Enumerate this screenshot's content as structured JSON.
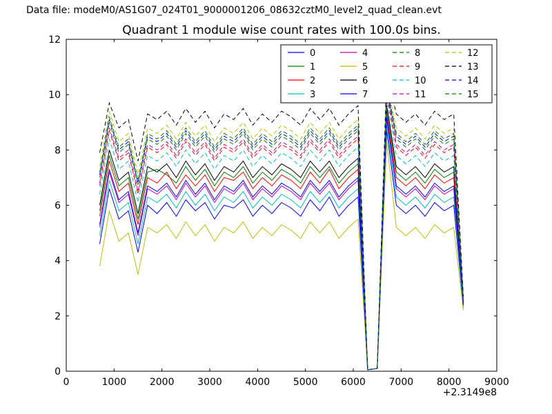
{
  "header": {
    "text": "Data file: modeM0/AS1G07_024T01_9000001206_08632cztM0_level2_quad_clean.evt"
  },
  "chart_data": {
    "type": "line",
    "title": "Quadrant 1 module wise count rates with 100.0s bins.",
    "xlabel": "",
    "ylabel": "",
    "x_axis": {
      "lim": [
        0,
        9000
      ],
      "ticks": [
        0,
        1000,
        2000,
        3000,
        4000,
        5000,
        6000,
        7000,
        8000,
        9000
      ],
      "offset_label": "+2.3149e8"
    },
    "y_axis": {
      "lim": [
        0,
        12
      ],
      "ticks": [
        0,
        2,
        4,
        6,
        8,
        10,
        12
      ]
    },
    "legend": {
      "location": "upper center",
      "ncol": 4,
      "entries": [
        "0",
        "1",
        "2",
        "3",
        "4",
        "5",
        "6",
        "7",
        "8",
        "9",
        "10",
        "11",
        "12",
        "13",
        "14",
        "15"
      ]
    },
    "grid": false,
    "x": [
      700,
      900,
      1100,
      1300,
      1500,
      1700,
      1900,
      2100,
      2300,
      2500,
      2700,
      2900,
      3100,
      3300,
      3500,
      3700,
      3900,
      4100,
      4300,
      4500,
      4700,
      4900,
      5100,
      5300,
      5500,
      5700,
      5900,
      6100,
      6300,
      6500,
      6700,
      6900,
      7100,
      7300,
      7500,
      7700,
      7900,
      8100,
      8300
    ],
    "series": [
      {
        "name": "0",
        "color": "#0000ff",
        "linestyle": "solid",
        "values": [
          4.6,
          6.6,
          5.5,
          5.8,
          4.3,
          6.0,
          5.7,
          6.1,
          5.6,
          6.2,
          5.8,
          6.1,
          5.5,
          6.0,
          5.9,
          6.2,
          5.6,
          6.0,
          5.7,
          6.1,
          5.9,
          5.6,
          6.2,
          5.8,
          6.3,
          5.6,
          6.0,
          6.3,
          0.05,
          0.1,
          8.7,
          6.0,
          5.7,
          6.0,
          5.6,
          6.1,
          5.8,
          6.0,
          2.3
        ]
      },
      {
        "name": "1",
        "color": "#008000",
        "linestyle": "solid",
        "values": [
          5.8,
          7.8,
          6.7,
          7.0,
          5.5,
          7.2,
          7.3,
          7.1,
          6.8,
          7.4,
          6.9,
          7.3,
          6.7,
          7.2,
          7.0,
          7.4,
          6.8,
          7.2,
          6.9,
          7.3,
          7.1,
          6.8,
          7.4,
          7.0,
          7.4,
          6.8,
          7.2,
          7.5,
          0.05,
          0.1,
          9.5,
          7.2,
          6.9,
          7.2,
          6.8,
          7.3,
          7.0,
          7.2,
          2.4
        ]
      },
      {
        "name": "2",
        "color": "#ff0000",
        "linestyle": "solid",
        "values": [
          5.6,
          7.6,
          6.5,
          6.8,
          5.3,
          7.0,
          6.8,
          7.2,
          6.6,
          7.1,
          6.7,
          7.1,
          6.5,
          7.0,
          6.9,
          7.2,
          6.6,
          7.0,
          6.7,
          7.1,
          6.9,
          6.6,
          7.2,
          6.8,
          7.3,
          6.6,
          7.0,
          7.3,
          0.05,
          0.1,
          9.3,
          7.0,
          6.7,
          7.0,
          6.6,
          7.1,
          6.8,
          7.0,
          2.4
        ]
      },
      {
        "name": "3",
        "color": "#00bfbf",
        "linestyle": "solid",
        "values": [
          4.9,
          6.9,
          5.8,
          6.1,
          4.6,
          6.3,
          6.1,
          6.4,
          5.9,
          6.5,
          6.0,
          6.4,
          5.8,
          6.3,
          6.1,
          6.5,
          5.9,
          6.3,
          6.0,
          6.4,
          6.2,
          5.9,
          6.5,
          6.1,
          6.5,
          5.9,
          6.3,
          6.6,
          0.05,
          0.1,
          8.9,
          6.3,
          6.0,
          6.3,
          5.9,
          6.4,
          6.1,
          6.3,
          2.3
        ]
      },
      {
        "name": "4",
        "color": "#bf00bf",
        "linestyle": "solid",
        "values": [
          5.2,
          7.2,
          6.1,
          6.4,
          4.9,
          6.6,
          6.4,
          6.7,
          6.2,
          6.8,
          6.3,
          6.7,
          6.1,
          6.6,
          6.4,
          6.8,
          6.2,
          6.6,
          6.3,
          6.7,
          6.5,
          6.2,
          6.8,
          6.4,
          6.8,
          6.2,
          6.6,
          6.9,
          0.05,
          0.1,
          9.1,
          6.6,
          6.3,
          6.6,
          6.2,
          6.7,
          6.4,
          6.6,
          2.4
        ]
      },
      {
        "name": "5",
        "color": "#bfbf00",
        "linestyle": "solid",
        "values": [
          3.8,
          5.8,
          4.7,
          5.0,
          3.5,
          5.2,
          5.0,
          5.3,
          4.8,
          5.4,
          4.9,
          5.3,
          4.7,
          5.2,
          5.0,
          5.4,
          4.8,
          5.2,
          4.9,
          5.3,
          5.1,
          4.8,
          5.4,
          5.0,
          5.4,
          4.8,
          5.2,
          5.5,
          0.05,
          0.1,
          8.3,
          5.2,
          4.9,
          5.2,
          4.8,
          5.3,
          5.0,
          5.2,
          2.2
        ]
      },
      {
        "name": "6",
        "color": "#000000",
        "linestyle": "solid",
        "values": [
          6.0,
          8.0,
          6.9,
          7.2,
          5.7,
          7.4,
          7.2,
          7.5,
          7.0,
          7.6,
          7.1,
          7.5,
          6.9,
          7.4,
          7.2,
          7.6,
          7.0,
          7.4,
          7.1,
          7.5,
          7.3,
          7.0,
          7.6,
          7.2,
          7.6,
          7.0,
          7.4,
          7.7,
          0.05,
          0.1,
          9.6,
          7.4,
          7.1,
          7.4,
          7.0,
          7.5,
          7.2,
          7.4,
          2.4
        ]
      },
      {
        "name": "7",
        "color": "#0000ff",
        "linestyle": "solid",
        "values": [
          5.3,
          7.3,
          6.2,
          6.5,
          5.0,
          6.7,
          6.5,
          6.8,
          6.3,
          6.9,
          6.4,
          6.8,
          6.2,
          6.7,
          6.5,
          6.9,
          6.3,
          6.7,
          6.4,
          6.8,
          6.6,
          6.3,
          6.9,
          6.5,
          6.9,
          6.3,
          6.7,
          7.0,
          0.05,
          0.1,
          9.2,
          6.7,
          6.4,
          6.7,
          6.3,
          6.8,
          6.5,
          6.7,
          2.4
        ]
      },
      {
        "name": "8",
        "color": "#008000",
        "linestyle": "dashed",
        "values": [
          7.0,
          9.0,
          7.9,
          8.2,
          6.7,
          8.4,
          8.2,
          8.5,
          8.0,
          8.6,
          8.1,
          8.5,
          7.9,
          8.4,
          8.2,
          8.6,
          8.0,
          8.4,
          8.1,
          8.5,
          8.3,
          8.0,
          8.6,
          8.2,
          8.6,
          8.0,
          8.4,
          8.7,
          0.05,
          0.1,
          10.2,
          8.4,
          8.1,
          8.4,
          8.0,
          8.5,
          8.2,
          8.4,
          2.5
        ]
      },
      {
        "name": "9",
        "color": "#ff0000",
        "linestyle": "dashed",
        "values": [
          6.7,
          8.7,
          7.6,
          7.9,
          6.4,
          8.1,
          7.9,
          8.2,
          7.7,
          8.3,
          7.8,
          8.2,
          7.6,
          8.1,
          7.9,
          8.3,
          7.7,
          8.1,
          7.8,
          8.2,
          8.0,
          7.7,
          8.3,
          7.9,
          8.3,
          7.7,
          8.1,
          8.4,
          0.05,
          0.1,
          10.0,
          8.1,
          7.8,
          8.1,
          7.7,
          8.2,
          7.9,
          8.1,
          2.5
        ]
      },
      {
        "name": "10",
        "color": "#00bfbf",
        "linestyle": "dashed",
        "values": [
          6.4,
          8.4,
          7.3,
          7.6,
          6.1,
          7.8,
          7.6,
          7.9,
          7.4,
          8.0,
          7.5,
          7.9,
          7.3,
          7.8,
          7.6,
          8.0,
          7.4,
          7.8,
          7.5,
          7.9,
          7.7,
          7.4,
          8.0,
          7.6,
          8.0,
          7.4,
          7.8,
          8.1,
          0.05,
          0.1,
          9.8,
          7.8,
          7.5,
          7.8,
          7.4,
          7.9,
          7.6,
          7.8,
          2.5
        ]
      },
      {
        "name": "11",
        "color": "#bf00bf",
        "linestyle": "dashed",
        "values": [
          6.8,
          8.8,
          7.7,
          8.0,
          6.5,
          8.2,
          8.0,
          8.3,
          7.8,
          8.4,
          7.9,
          8.3,
          7.7,
          8.2,
          8.0,
          8.4,
          7.8,
          8.2,
          7.9,
          8.3,
          8.1,
          7.8,
          8.4,
          8.0,
          8.4,
          7.8,
          8.2,
          8.5,
          0.05,
          0.1,
          10.1,
          8.2,
          7.9,
          8.2,
          7.8,
          8.3,
          8.0,
          8.2,
          2.5
        ]
      },
      {
        "name": "12",
        "color": "#bfbf00",
        "linestyle": "dashed",
        "values": [
          7.4,
          9.4,
          8.3,
          8.6,
          7.1,
          8.8,
          8.6,
          8.9,
          8.4,
          9.0,
          8.5,
          8.9,
          8.3,
          8.8,
          8.6,
          9.0,
          8.4,
          8.8,
          8.5,
          8.9,
          8.7,
          8.4,
          9.0,
          8.6,
          9.0,
          8.4,
          8.8,
          9.1,
          0.05,
          0.1,
          10.4,
          8.8,
          8.5,
          8.8,
          8.4,
          8.9,
          8.6,
          8.8,
          2.6
        ]
      },
      {
        "name": "13",
        "color": "#000000",
        "linestyle": "dashed",
        "values": [
          7.9,
          9.7,
          8.8,
          9.1,
          7.6,
          9.3,
          9.1,
          9.4,
          8.9,
          9.5,
          9.0,
          9.4,
          8.8,
          9.3,
          9.1,
          9.5,
          8.9,
          9.3,
          9.0,
          9.4,
          9.2,
          8.9,
          9.5,
          9.1,
          9.5,
          8.9,
          9.3,
          9.6,
          0.05,
          0.1,
          10.8,
          9.3,
          9.0,
          9.3,
          8.9,
          9.4,
          9.1,
          9.3,
          2.7
        ]
      },
      {
        "name": "14",
        "color": "#0000ff",
        "linestyle": "dashed",
        "values": [
          7.1,
          9.1,
          8.0,
          8.3,
          6.8,
          8.5,
          8.3,
          8.6,
          8.1,
          8.7,
          8.2,
          8.6,
          8.0,
          8.5,
          8.3,
          8.7,
          8.1,
          8.5,
          8.2,
          8.6,
          8.4,
          8.1,
          8.7,
          8.3,
          8.7,
          8.1,
          8.5,
          8.8,
          0.05,
          0.1,
          10.2,
          8.5,
          8.2,
          8.5,
          8.1,
          8.6,
          8.3,
          8.5,
          2.5
        ]
      },
      {
        "name": "15",
        "color": "#008000",
        "linestyle": "dashed",
        "values": [
          7.2,
          9.2,
          8.1,
          8.4,
          6.9,
          8.6,
          8.4,
          8.7,
          8.2,
          8.8,
          8.3,
          8.7,
          8.1,
          8.6,
          8.4,
          8.8,
          8.2,
          8.6,
          8.3,
          8.7,
          8.5,
          8.2,
          8.8,
          8.4,
          8.8,
          8.2,
          8.6,
          8.9,
          0.05,
          0.1,
          10.3,
          8.6,
          8.3,
          8.6,
          8.2,
          8.7,
          8.4,
          8.6,
          2.6
        ]
      }
    ]
  },
  "colors": {
    "background": "#ffffff",
    "axes": "#000000"
  }
}
